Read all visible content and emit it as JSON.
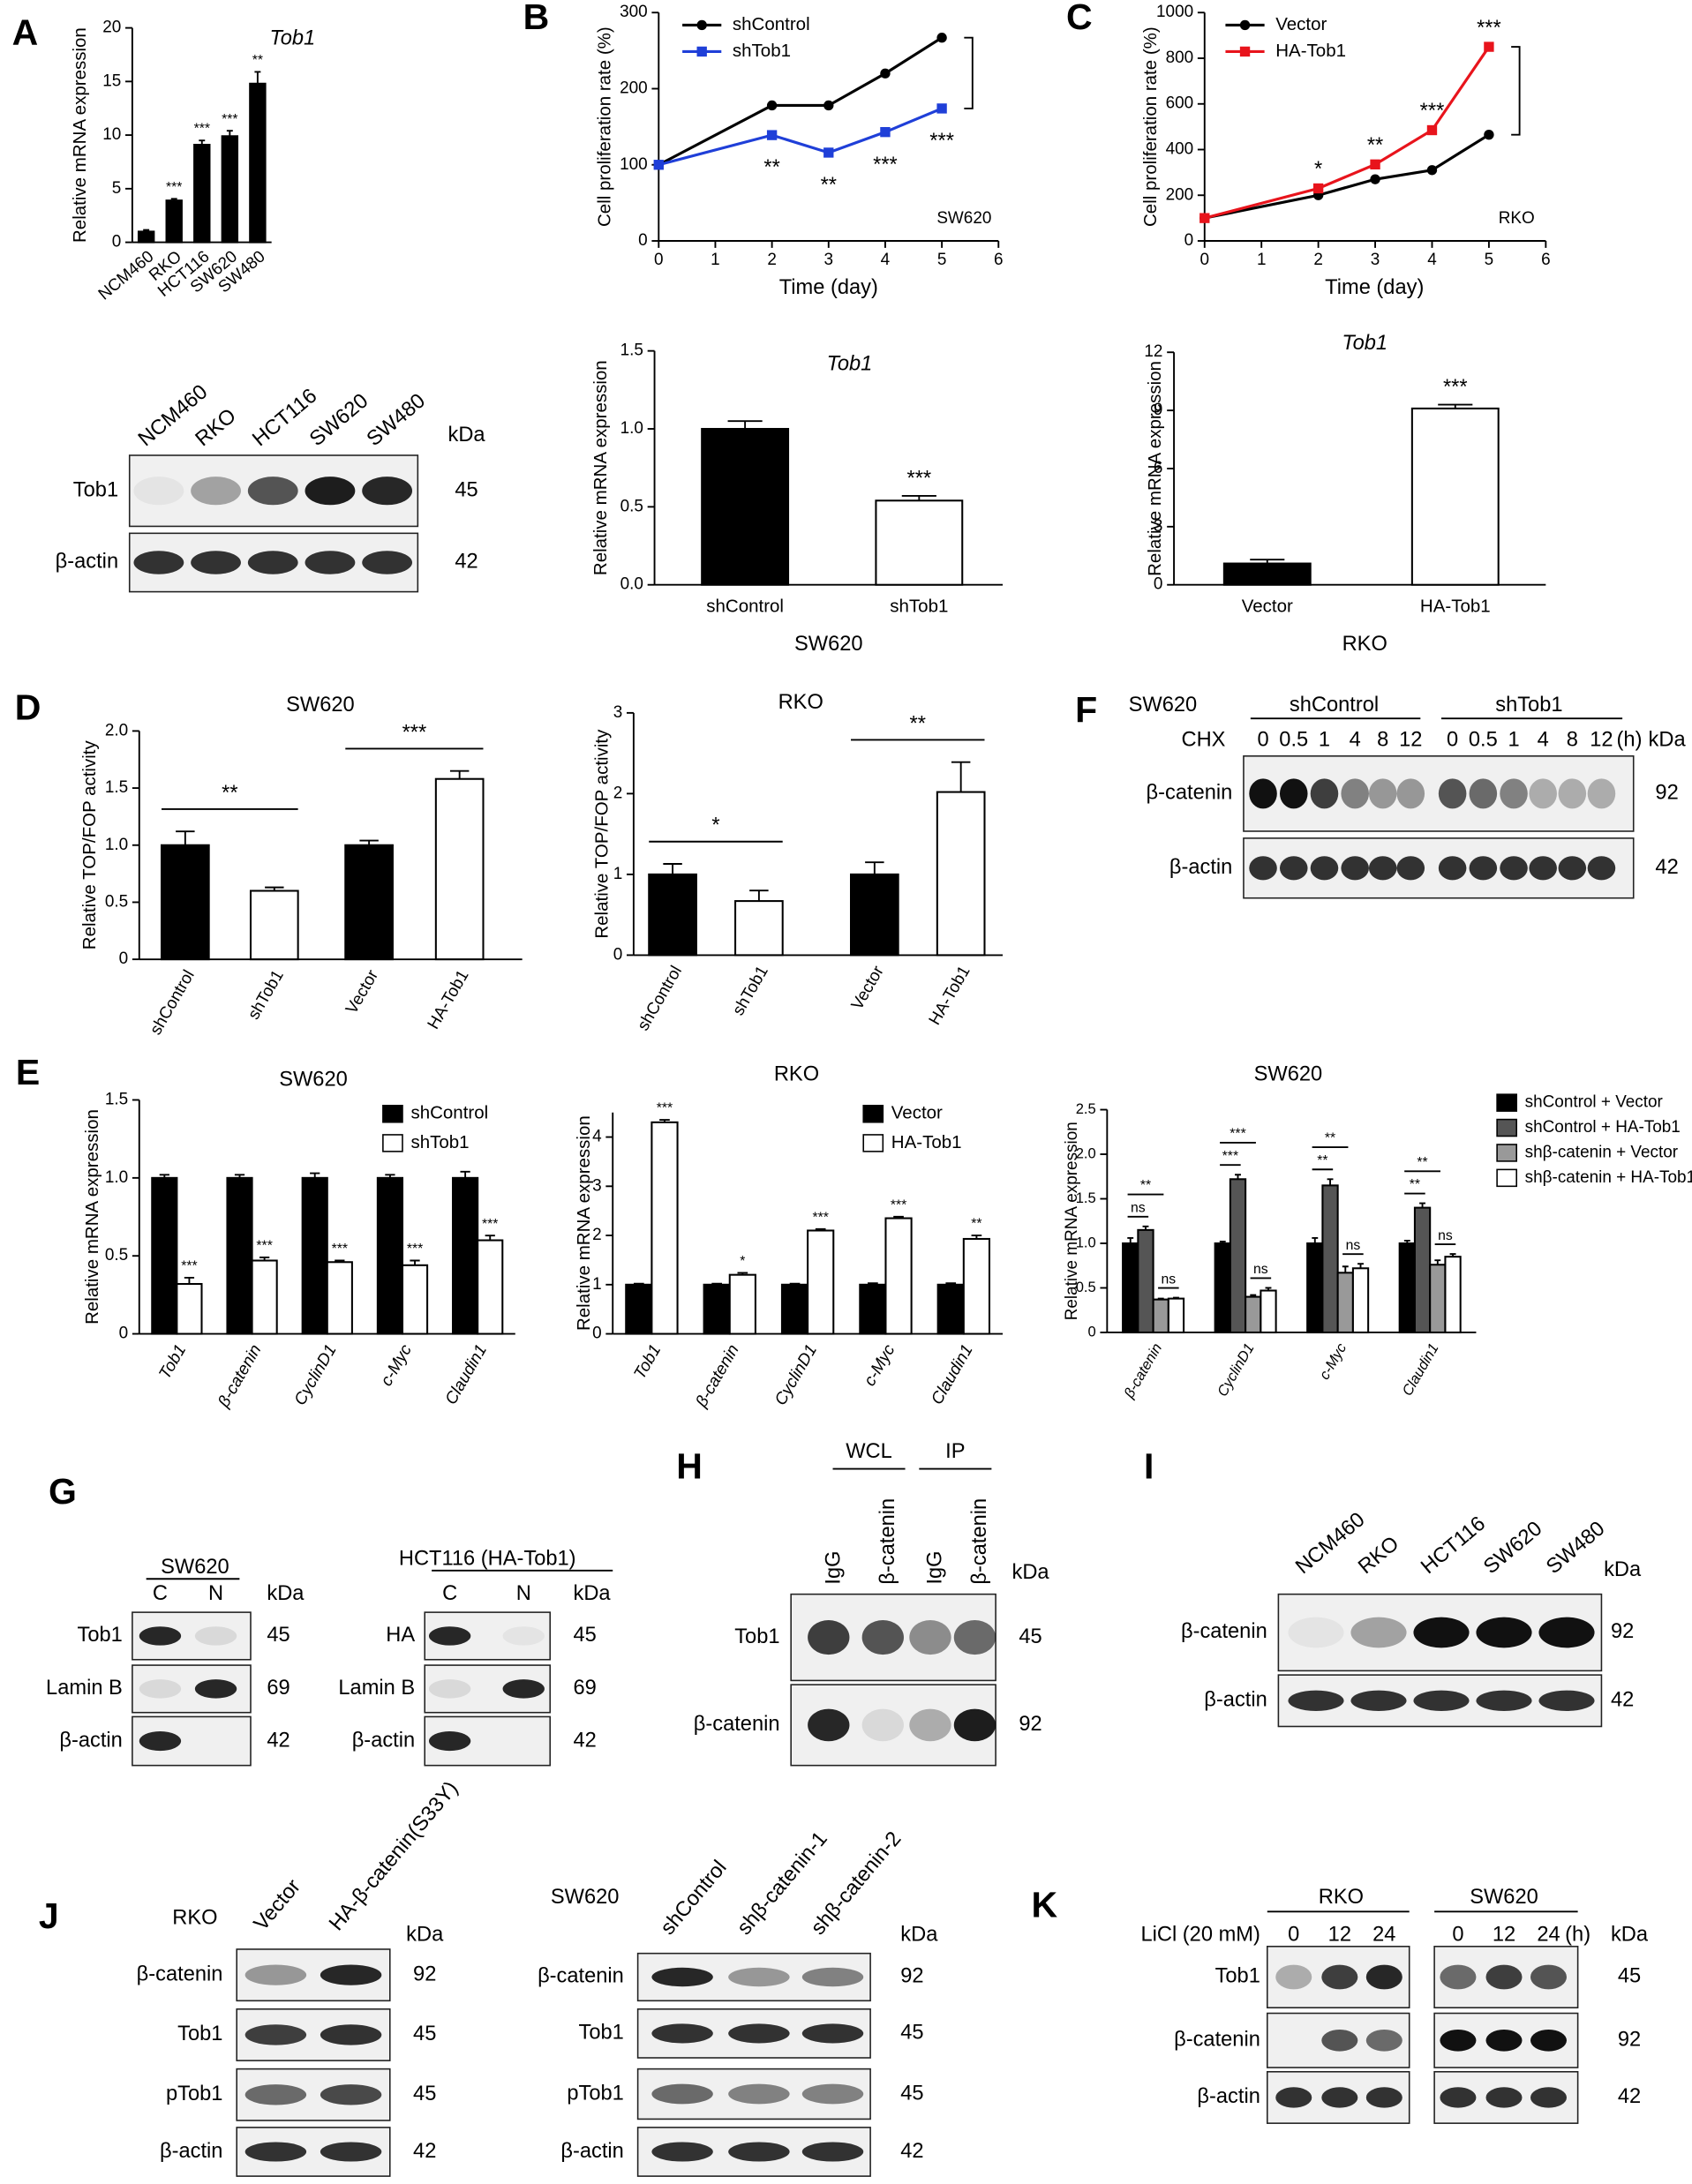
{
  "panel_labels": [
    "A",
    "B",
    "C",
    "D",
    "E",
    "F",
    "G",
    "H",
    "I",
    "J",
    "K"
  ],
  "chart_data": [
    {
      "type": "bar",
      "title": "Tob1",
      "ylabel": "Relative mRNA expression",
      "categories": [
        "NCM460",
        "RKO",
        "HCT116",
        "SW620",
        "SW480"
      ],
      "series": [
        {
          "colors": [
            "#000000",
            "#000000",
            "#000000",
            "#000000",
            "#000000"
          ],
          "values": [
            1,
            3.9,
            9.1,
            9.9,
            14.8
          ],
          "errors": [
            0.15,
            0.15,
            0.4,
            0.5,
            1.1
          ]
        }
      ],
      "significance": [
        null,
        "***",
        "***",
        "***",
        "**"
      ],
      "ylim": [
        0,
        20
      ],
      "yticks": [
        0,
        5,
        10,
        15,
        20
      ]
    },
    {
      "type": "line",
      "note": "SW620",
      "xlabel": "Time (day)",
      "ylabel": "Cell proliferation rate (%)",
      "x": [
        0,
        2,
        3,
        4,
        5
      ],
      "series": [
        {
          "name": "shControl",
          "color": "#000000",
          "values": [
            100,
            178,
            178,
            220,
            267
          ]
        },
        {
          "name": "shTob1",
          "color": "#1f3fd8",
          "values": [
            100,
            139,
            116,
            143,
            174
          ]
        }
      ],
      "significance": [
        null,
        "**",
        "**",
        "***",
        "***"
      ],
      "xlim": [
        0,
        6
      ],
      "xticks": [
        0,
        1,
        2,
        3,
        4,
        5,
        6
      ],
      "ylim": [
        0,
        300
      ],
      "yticks": [
        0,
        100,
        200,
        300
      ],
      "legend": "upper left"
    },
    {
      "type": "line",
      "note": "RKO",
      "xlabel": "Time (day)",
      "ylabel": "Cell proliferation rate (%)",
      "x": [
        0,
        2,
        3,
        4,
        5
      ],
      "series": [
        {
          "name": "Vector",
          "color": "#000000",
          "values": [
            100,
            200,
            270,
            310,
            465
          ]
        },
        {
          "name": "HA-Tob1",
          "color": "#e8141c",
          "values": [
            100,
            230,
            335,
            485,
            850
          ]
        }
      ],
      "significance": [
        null,
        "*",
        "**",
        "***",
        "***"
      ],
      "xlim": [
        0,
        6
      ],
      "xticks": [
        0,
        1,
        2,
        3,
        4,
        5,
        6
      ],
      "ylim": [
        0,
        1000
      ],
      "yticks": [
        0,
        200,
        400,
        600,
        800,
        1000
      ],
      "legend": "upper left"
    },
    {
      "type": "bar",
      "title": "Tob1",
      "ylabel": "Relative mRNA expression",
      "xlabel": "SW620",
      "categories": [
        "shControl",
        "shTob1"
      ],
      "series": [
        {
          "colors": [
            "#000000",
            "#ffffff"
          ],
          "values": [
            1.0,
            0.54
          ],
          "errors": [
            0.05,
            0.03
          ]
        }
      ],
      "significance": [
        null,
        "***"
      ],
      "ylim": [
        0,
        1.5
      ],
      "yticks": [
        {
          "value": 0,
          "label": "0.0"
        },
        0.5,
        {
          "value": 1,
          "label": "1.0"
        },
        1.5
      ]
    },
    {
      "type": "bar",
      "title": "Tob1",
      "ylabel": "Relative mRNA expression",
      "xlabel": "RKO",
      "categories": [
        "Vector",
        "HA-Tob1"
      ],
      "series": [
        {
          "colors": [
            "#000000",
            "#ffffff"
          ],
          "values": [
            1.1,
            9.1
          ],
          "errors": [
            0.2,
            0.2
          ]
        }
      ],
      "significance": [
        null,
        "***"
      ],
      "ylim": [
        0,
        12
      ],
      "yticks": [
        0,
        3,
        6,
        9,
        12
      ]
    },
    {
      "type": "bar",
      "title": "SW620",
      "ylabel": "Relative TOP/FOP activity",
      "categories": [
        "shControl",
        "shTob1",
        "Vector",
        "HA-Tob1"
      ],
      "series": [
        {
          "colors": [
            "#000000",
            "#ffffff",
            "#000000",
            "#ffffff"
          ],
          "values": [
            1.0,
            0.6,
            1.0,
            1.58
          ],
          "errors": [
            0.12,
            0.03,
            0.04,
            0.07
          ]
        }
      ],
      "significance": [
        "**",
        "***"
      ],
      "ylim": [
        0,
        2
      ],
      "yticks": [
        0,
        0.5,
        {
          "value": 1,
          "label": "1.0"
        },
        1.5,
        {
          "value": 2,
          "label": "2.0"
        }
      ]
    },
    {
      "type": "bar",
      "title": "RKO",
      "ylabel": "Relative TOP/FOP activity",
      "categories": [
        "shControl",
        "shTob1",
        "Vector",
        "HA-Tob1"
      ],
      "series": [
        {
          "colors": [
            "#000000",
            "#ffffff",
            "#000000",
            "#ffffff"
          ],
          "values": [
            1.0,
            0.67,
            1.0,
            2.02
          ],
          "errors": [
            0.13,
            0.13,
            0.15,
            0.37
          ]
        }
      ],
      "significance": [
        "*",
        "**"
      ],
      "ylim": [
        0,
        3
      ],
      "yticks": [
        0,
        1,
        2,
        3
      ]
    },
    {
      "type": "bar",
      "title": "SW620",
      "ylabel": "Relative mRNA expression",
      "categories": [
        "Tob1",
        "β-catenin",
        "CyclinD1",
        "c-Myc",
        "Claudin1"
      ],
      "series": [
        {
          "name": "shControl",
          "color": "#000000",
          "values": [
            1,
            1,
            1,
            1,
            1
          ],
          "errors": [
            0.02,
            0.02,
            0.03,
            0.02,
            0.04
          ]
        },
        {
          "name": "shTob1",
          "color": "#ffffff",
          "values": [
            0.32,
            0.47,
            0.46,
            0.44,
            0.6
          ],
          "errors": [
            0.04,
            0.02,
            0.01,
            0.03,
            0.03
          ]
        }
      ],
      "significance": [
        "***",
        "***",
        "***",
        "***",
        "***"
      ],
      "ylim": [
        0,
        1.5
      ],
      "yticks": [
        0,
        0.5,
        {
          "value": 1,
          "label": "1.0"
        },
        1.5
      ],
      "legend": "upper right"
    },
    {
      "type": "bar",
      "title": "RKO",
      "ylabel": "Relative mRNA expression",
      "categories": [
        "Tob1",
        "β-catenin",
        "CyclinD1",
        "c-Myc",
        "Claudin1"
      ],
      "series": [
        {
          "name": "Vector",
          "color": "#000000",
          "values": [
            1,
            1,
            1,
            1,
            1
          ],
          "errors": [
            0.02,
            0.02,
            0.02,
            0.03,
            0.03
          ]
        },
        {
          "name": "HA-Tob1",
          "color": "#ffffff",
          "values": [
            4.3,
            1.2,
            2.1,
            2.35,
            1.93
          ],
          "errors": [
            0.05,
            0.04,
            0.03,
            0.03,
            0.07
          ]
        }
      ],
      "significance": [
        "***",
        "*",
        "***",
        "***",
        "**"
      ],
      "ylim": [
        0,
        4.5
      ],
      "yticks": [
        0,
        1,
        2,
        3,
        4
      ],
      "legend": "upper right"
    },
    {
      "type": "bar",
      "title": "SW620",
      "ylabel": "Relative mRNA expression",
      "categories": [
        "β-catenin",
        "CyclinD1",
        "c-Myc",
        "Claudin1"
      ],
      "series": [
        {
          "name": "shControl + Vector",
          "color": "#000000",
          "values": [
            1,
            1,
            1,
            1
          ],
          "errors": [
            0.06,
            0.02,
            0.06,
            0.03
          ]
        },
        {
          "name": "shControl + HA-Tob1",
          "color": "#555555",
          "values": [
            1.15,
            1.72,
            1.65,
            1.4
          ],
          "errors": [
            0.04,
            0.05,
            0.07,
            0.05
          ]
        },
        {
          "name": "shβ-catenin + Vector",
          "color": "#999999",
          "values": [
            0.37,
            0.4,
            0.67,
            0.76
          ],
          "errors": [
            0.01,
            0.02,
            0.07,
            0.05
          ]
        },
        {
          "name": "shβ-catenin + HA-Tob1",
          "color": "#ffffff",
          "values": [
            0.38,
            0.47,
            0.72,
            0.85
          ],
          "errors": [
            0.01,
            0.03,
            0.05,
            0.03
          ]
        }
      ],
      "significance": [
        [
          "ns",
          "**",
          "ns"
        ],
        [
          "***",
          "***",
          "ns"
        ],
        [
          "**",
          "**",
          "ns"
        ],
        [
          "**",
          "**",
          "ns"
        ]
      ],
      "ylim": [
        0,
        2.5
      ],
      "yticks": [
        0,
        0.5,
        {
          "value": 1,
          "label": "1.0"
        },
        1.5,
        {
          "value": 2,
          "label": "2.0"
        },
        2.5
      ],
      "legend": "right"
    }
  ],
  "blots": [
    {
      "lanes": [
        "NCM460",
        "RKO",
        "HCT116",
        "SW620",
        "SW480"
      ],
      "unit": "kDa",
      "rows": [
        {
          "label": "Tob1",
          "kda": "45"
        },
        {
          "label": "β-actin",
          "kda": "42"
        }
      ]
    },
    {
      "cell_line": "SW620",
      "groups": [
        "shControl",
        "shTob1"
      ],
      "treatment": "CHX",
      "lanes": [
        "0",
        "0.5",
        "1",
        "4",
        "8",
        "12",
        "0",
        "0.5",
        "1",
        "4",
        "8",
        "12"
      ],
      "time_unit": "(h)",
      "unit": "kDa",
      "rows": [
        {
          "label": "β-catenin",
          "kda": "92"
        },
        {
          "label": "β-actin",
          "kda": "42"
        }
      ]
    },
    {
      "cell_line": "SW620",
      "lanes": [
        "C",
        "N"
      ],
      "unit": "kDa",
      "rows": [
        {
          "label": "Tob1",
          "kda": "45"
        },
        {
          "label": "Lamin B",
          "kda": "69"
        },
        {
          "label": "β-actin",
          "kda": "42"
        }
      ]
    },
    {
      "cell_line": "HCT116 (HA-Tob1)",
      "lanes": [
        "C",
        "N"
      ],
      "unit": "kDa",
      "rows": [
        {
          "label": "HA",
          "kda": "45"
        },
        {
          "label": "Lamin B",
          "kda": "69"
        },
        {
          "label": "β-actin",
          "kda": "42"
        }
      ]
    },
    {
      "groups": [
        "WCL",
        "IP"
      ],
      "lanes": [
        "IgG",
        "β-catenin",
        "IgG",
        "β-catenin"
      ],
      "unit": "kDa",
      "rows": [
        {
          "label": "Tob1",
          "kda": "45"
        },
        {
          "label": "β-catenin",
          "kda": "92"
        }
      ]
    },
    {
      "lanes": [
        "NCM460",
        "RKO",
        "HCT116",
        "SW620",
        "SW480"
      ],
      "unit": "kDa",
      "rows": [
        {
          "label": "β-catenin",
          "kda": "92"
        },
        {
          "label": "β-actin",
          "kda": "42"
        }
      ]
    },
    {
      "cell_line": "RKO",
      "lanes": [
        "Vector",
        "HA-β-catenin(S33Y)"
      ],
      "unit": "kDa",
      "rows": [
        {
          "label": "β-catenin",
          "kda": "92"
        },
        {
          "label": "Tob1",
          "kda": "45"
        },
        {
          "label": "pTob1",
          "kda": "45"
        },
        {
          "label": "β-actin",
          "kda": "42"
        }
      ]
    },
    {
      "cell_line": "SW620",
      "lanes": [
        "shControl",
        "shβ-catenin-1",
        "shβ-catenin-2"
      ],
      "unit": "kDa",
      "rows": [
        {
          "label": "β-catenin",
          "kda": "92"
        },
        {
          "label": "Tob1",
          "kda": "45"
        },
        {
          "label": "pTob1",
          "kda": "45"
        },
        {
          "label": "β-actin",
          "kda": "42"
        }
      ]
    },
    {
      "treatment": "LiCl (20 mM)",
      "groups": [
        "RKO",
        "SW620"
      ],
      "lanes": [
        "0",
        "12",
        "24",
        "0",
        "12",
        "24"
      ],
      "time_unit": "(h)",
      "unit": "kDa",
      "rows": [
        {
          "label": "Tob1",
          "kda": "45"
        },
        {
          "label": "β-catenin",
          "kda": "92"
        },
        {
          "label": "β-actin",
          "kda": "42"
        }
      ]
    }
  ]
}
